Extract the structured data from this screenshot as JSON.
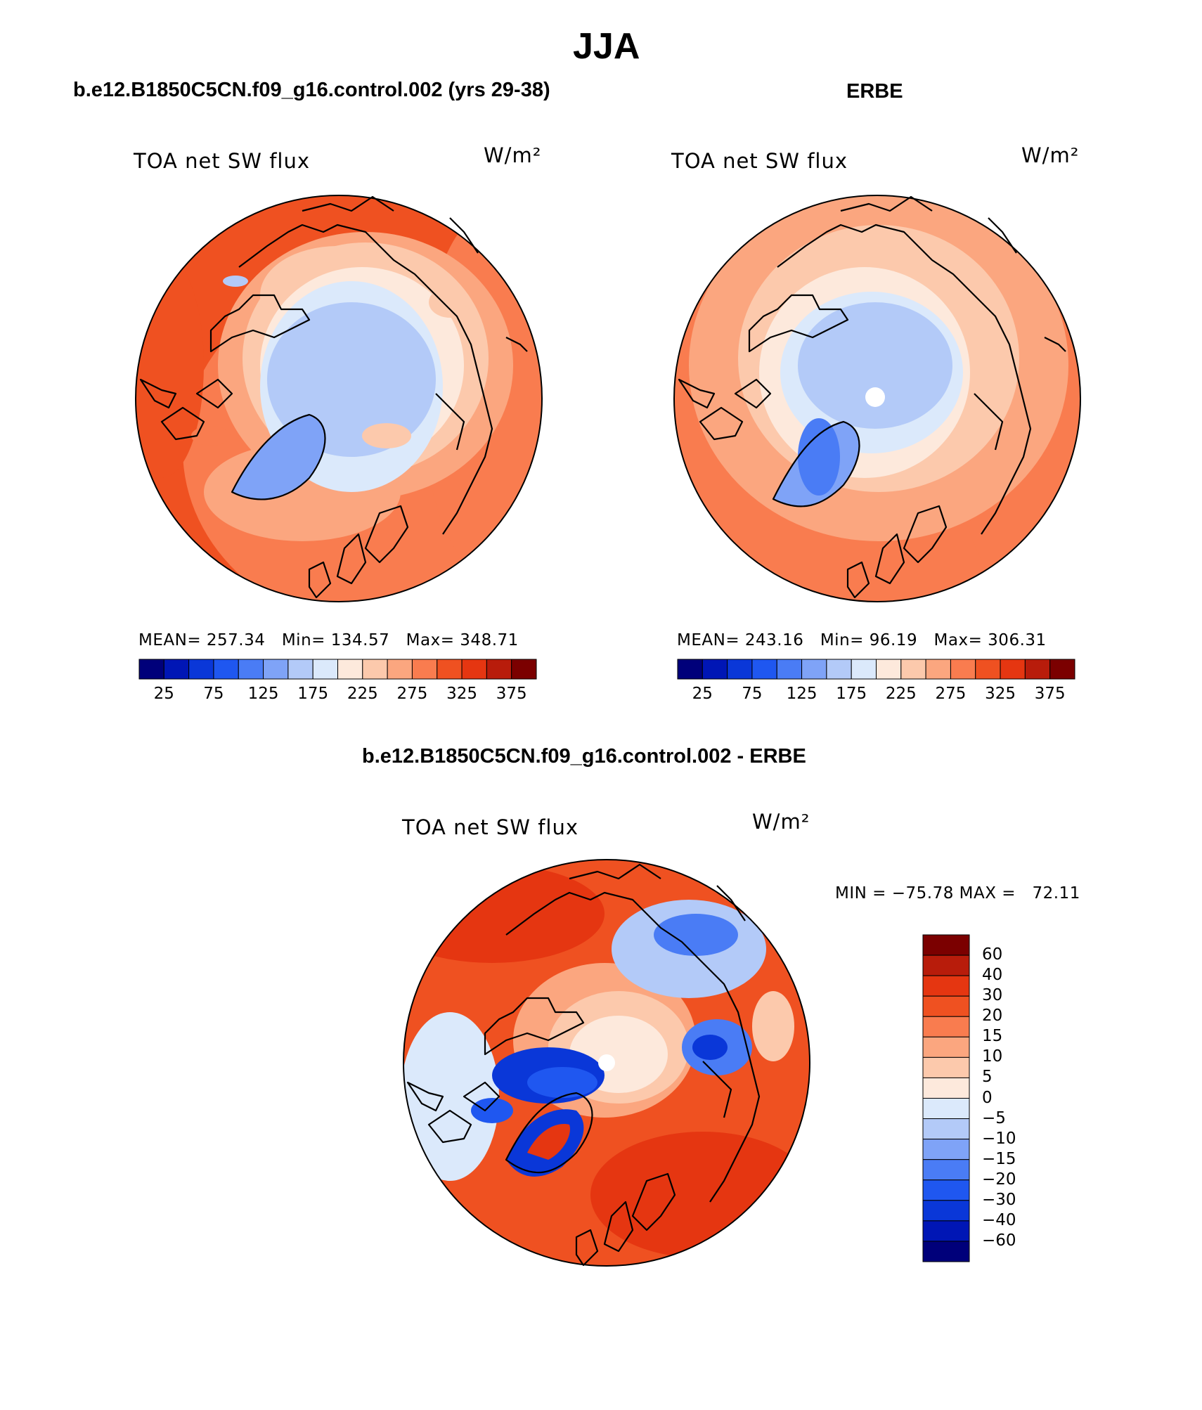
{
  "title": "JJA",
  "panels": [
    {
      "id": "model",
      "case_title": "b.e12.B1850C5CN.f09_g16.control.002 (yrs 29-38)",
      "var_label": "TOA net SW flux",
      "units": "W/m²",
      "stats": {
        "mean_label": "MEAN=",
        "mean": "257.34",
        "min_label": "Min=",
        "min": "134.57",
        "max_label": "Max=",
        "max": "348.71"
      }
    },
    {
      "id": "obs",
      "case_title": "ERBE",
      "var_label": "TOA net SW flux",
      "units": "W/m²",
      "stats": {
        "mean_label": "MEAN=",
        "mean": "243.16",
        "min_label": "Min=",
        "min": "96.19",
        "max_label": "Max=",
        "max": "306.31"
      }
    },
    {
      "id": "diff",
      "case_title": "b.e12.B1850C5CN.f09_g16.control.002 - ERBE",
      "var_label": "TOA net SW flux",
      "units": "W/m²",
      "stats_text": "MIN = −75.78 MAX =   72.11"
    }
  ],
  "colorbar_main": {
    "colors": [
      "#00007a",
      "#0016b5",
      "#0a37d8",
      "#1f57f0",
      "#4a7cf5",
      "#7fa3f7",
      "#b3caf8",
      "#dbe9fb",
      "#fde9dc",
      "#fcc9ac",
      "#fba67f",
      "#f97c4f",
      "#ef5121",
      "#e53611",
      "#b81c0b",
      "#7b0000"
    ],
    "tick_labels": [
      "25",
      "75",
      "125",
      "175",
      "225",
      "275",
      "325",
      "375"
    ]
  },
  "colorbar_diff": {
    "colors_top_to_bottom": [
      "#7b0000",
      "#b81c0b",
      "#e53611",
      "#ef5121",
      "#f97c4f",
      "#fba67f",
      "#fcc9ac",
      "#fde9dc",
      "#dbe9fb",
      "#b3caf8",
      "#7fa3f7",
      "#4a7cf5",
      "#1f57f0",
      "#0a37d8",
      "#0016b5",
      "#00007a"
    ],
    "tick_labels_top_to_bottom": [
      "60",
      "40",
      "30",
      "20",
      "15",
      "10",
      "5",
      "0",
      "−5",
      "−10",
      "−15",
      "−20",
      "−30",
      "−40",
      "−60"
    ]
  },
  "palette": {
    "deep_red": "#e53611",
    "red": "#ef5121",
    "orange": "#f97c4f",
    "salmon": "#fba67f",
    "peach": "#fcc9ac",
    "cream": "#fde9dc",
    "pale_blue": "#dbe9fb",
    "light_blue": "#b3caf8",
    "mid_blue": "#7fa3f7",
    "blue": "#4a7cf5",
    "strong_blue": "#1f57f0",
    "dark_blue": "#0a37d8"
  }
}
